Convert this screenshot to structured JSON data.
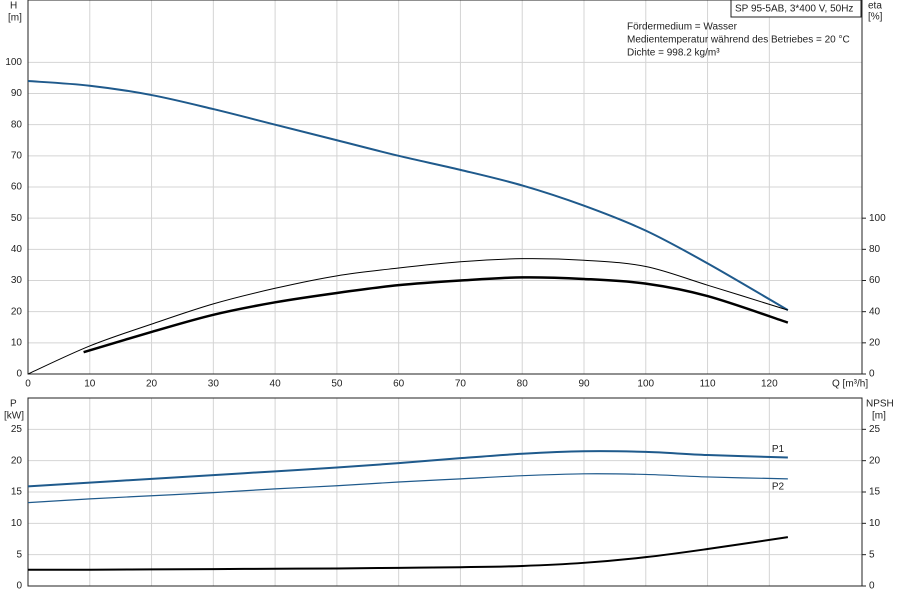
{
  "chart_data": [
    {
      "type": "line",
      "title": "SP 95-5AB, 3*400 V, 50Hz",
      "annotations": [
        "Fördermedium = Wasser",
        "Medientemperatur während des Betriebes = 20 °C",
        "Dichte = 998.2 kg/m³"
      ],
      "y_label": "H",
      "y_unit": "[m]",
      "y2_label": "eta",
      "y2_unit": "[%]",
      "x_label": "Q [m³/h]",
      "xlim": [
        0,
        135
      ],
      "xticks": [
        0,
        10,
        20,
        30,
        40,
        50,
        60,
        70,
        80,
        90,
        100,
        110,
        120
      ],
      "ylim": [
        0,
        120
      ],
      "yticks": [
        0,
        10,
        20,
        30,
        40,
        50,
        60,
        70,
        80,
        90,
        100
      ],
      "y2lim": [
        0,
        240
      ],
      "y2ticks": [
        0,
        20,
        40,
        60,
        80,
        100
      ],
      "grid": true,
      "series": [
        {
          "color": "#1f5a8c",
          "line_width": 2,
          "x": [
            0,
            10,
            20,
            30,
            40,
            50,
            60,
            70,
            80,
            90,
            100,
            110,
            123
          ],
          "values": [
            94,
            92.5,
            89.5,
            85,
            80,
            75,
            70,
            65.5,
            60.5,
            54,
            46,
            35.5,
            20.5
          ]
        },
        {
          "color": "#000000",
          "line_width": 1,
          "axis": "y2",
          "x": [
            0,
            10,
            20,
            30,
            40,
            50,
            60,
            70,
            80,
            90,
            100,
            110,
            123
          ],
          "values": [
            0,
            18,
            32,
            45,
            55,
            63,
            68,
            72,
            74,
            73,
            69,
            57,
            41
          ]
        },
        {
          "color": "#000000",
          "line_width": 2.5,
          "axis": "y2",
          "x": [
            9,
            20,
            30,
            40,
            50,
            60,
            70,
            80,
            90,
            100,
            110,
            123
          ],
          "values": [
            14,
            27,
            38,
            46,
            52,
            57,
            60,
            62,
            61,
            58,
            50,
            33
          ]
        }
      ]
    },
    {
      "type": "line",
      "y_label": "P",
      "y_unit": "[kW]",
      "y2_label": "NPSH",
      "y2_unit": "[m]",
      "ylim": [
        0,
        30
      ],
      "yticks": [
        0,
        5,
        10,
        15,
        20,
        25
      ],
      "y2lim": [
        0,
        30
      ],
      "y2ticks": [
        0,
        5,
        10,
        15,
        20,
        25
      ],
      "grid": true,
      "series": [
        {
          "name": "P1",
          "color": "#1f5a8c",
          "line_width": 2,
          "x": [
            0,
            10,
            20,
            30,
            40,
            50,
            60,
            70,
            80,
            90,
            100,
            110,
            123
          ],
          "values": [
            15.9,
            16.5,
            17.1,
            17.7,
            18.3,
            18.9,
            19.6,
            20.4,
            21.1,
            21.5,
            21.4,
            20.9,
            20.5
          ]
        },
        {
          "name": "P2",
          "color": "#1f5a8c",
          "line_width": 1.2,
          "x": [
            0,
            10,
            20,
            30,
            40,
            50,
            60,
            70,
            80,
            90,
            100,
            110,
            123
          ],
          "values": [
            13.3,
            13.9,
            14.4,
            14.9,
            15.5,
            16.0,
            16.6,
            17.1,
            17.6,
            17.9,
            17.8,
            17.4,
            17.1
          ]
        },
        {
          "color": "#000000",
          "line_width": 2,
          "axis": "y2",
          "x": [
            0,
            10,
            20,
            30,
            40,
            50,
            60,
            70,
            80,
            90,
            100,
            110,
            123
          ],
          "values": [
            2.6,
            2.6,
            2.65,
            2.7,
            2.75,
            2.8,
            2.9,
            3.0,
            3.2,
            3.7,
            4.6,
            5.9,
            7.8
          ]
        }
      ]
    }
  ]
}
